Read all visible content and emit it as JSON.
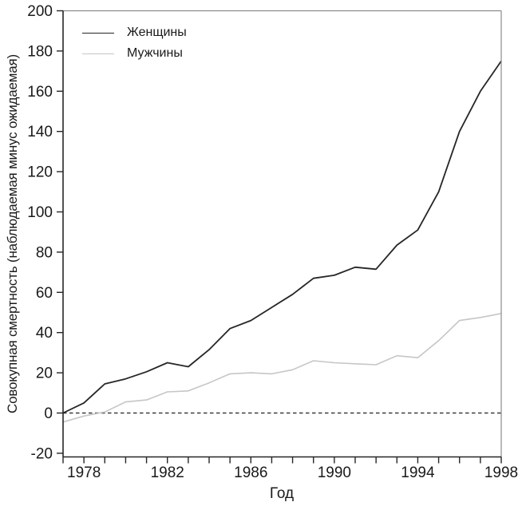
{
  "figure": {
    "background": "#ffffff",
    "text_color": "#1a1a1a"
  },
  "axes": {
    "axis_dark_color": "#262626",
    "frame_light_color": "#8c8c8c",
    "tick_label_color": "#1a1a1a"
  },
  "zero_line": {
    "value": 0,
    "color": "#3a3a3a",
    "dash": "4.5 3.5",
    "stroke_width": 1.4
  },
  "chart_data": {
    "type": "line",
    "title": "",
    "xlabel": "Год",
    "ylabel": "Совокупная смертность (наблюдаемая минус ожидаемая)",
    "x": [
      1977,
      1978,
      1979,
      1980,
      1981,
      1982,
      1983,
      1984,
      1985,
      1986,
      1987,
      1988,
      1989,
      1990,
      1991,
      1992,
      1993,
      1994,
      1995,
      1996,
      1997,
      1998
    ],
    "series": [
      {
        "id": "women",
        "name": "Женщины",
        "color": "#262626",
        "stroke_width": 1.8,
        "values": [
          0,
          5,
          14.5,
          17,
          20.5,
          25,
          23,
          31.5,
          42,
          46,
          52.5,
          59,
          67,
          68.5,
          72.5,
          71.5,
          83.5,
          91,
          110,
          140,
          160,
          175
        ]
      },
      {
        "id": "men",
        "name": "Мужчины",
        "color": "#c6c6c6",
        "stroke_width": 1.6,
        "values": [
          -4.5,
          -1.5,
          0.5,
          5.5,
          6.5,
          10.5,
          11,
          15,
          19.5,
          20,
          19.5,
          21.5,
          26,
          25,
          24.5,
          24,
          28.5,
          27.5,
          36,
          46,
          47.5,
          49.5
        ]
      }
    ],
    "xlim": [
      1977,
      1998
    ],
    "ylim": [
      -20,
      200
    ],
    "x_tick_step": 1,
    "x_tick_labels": [
      1978,
      1982,
      1986,
      1990,
      1994,
      1998
    ],
    "y_ticks": [
      -20,
      0,
      20,
      40,
      60,
      80,
      100,
      120,
      140,
      160,
      180,
      200
    ],
    "grid": false,
    "legend_position": "top-left"
  }
}
